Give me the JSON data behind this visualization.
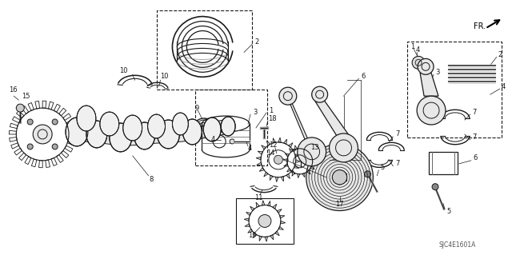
{
  "background_color": "#ffffff",
  "diagram_color": "#1a1a1a",
  "fig_width": 6.4,
  "fig_height": 3.19,
  "dpi": 100,
  "watermark": "SJC4E1601A",
  "fr_label": "FR."
}
